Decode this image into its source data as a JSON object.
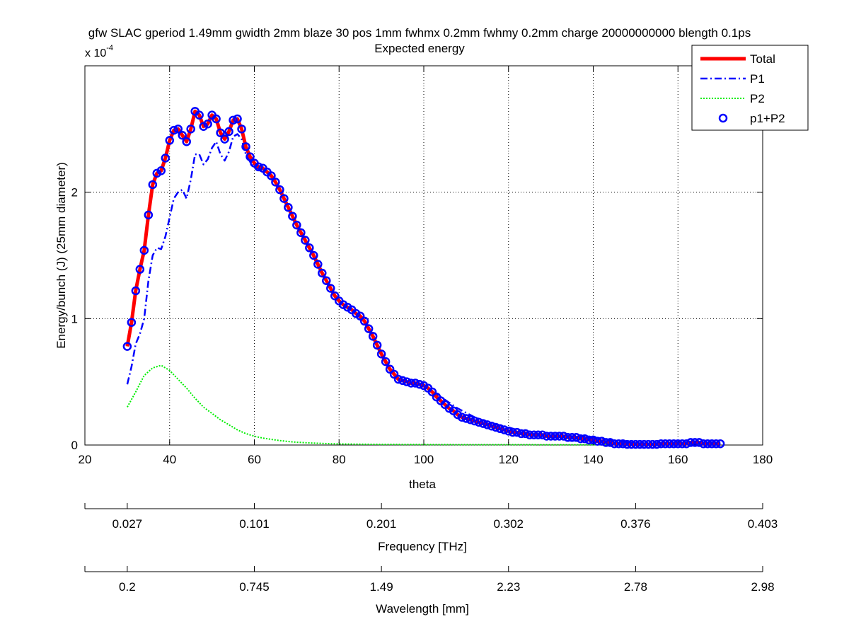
{
  "figure": {
    "title_line1": "gfw SLAC gperiod 1.49mm gwidth 2mm blaze 30 pos 1mm fwhmx 0.2mm fwhmy 0.2mm charge 20000000000 blength 0.1ps",
    "title_line2": "Expected energy",
    "exponent_label": "x 10",
    "exponent_power": "-4"
  },
  "chart_data": {
    "type": "line",
    "title": "Expected energy",
    "xlabel": "theta",
    "ylabel": "Energy/bunch (J) (25mm diameter)",
    "xlim": [
      20,
      180
    ],
    "ylim": [
      0,
      3.0
    ],
    "y_scale_factor": "x 10^-4",
    "grid": true,
    "legend_position": "top-right",
    "x_ticks": [
      20,
      40,
      60,
      80,
      100,
      120,
      140,
      160,
      180
    ],
    "y_ticks": [
      0,
      1,
      2
    ],
    "colors": {
      "total": "#ff0000",
      "p1": "#0000ff",
      "p2": "#00ee00",
      "sum": "#0000ff"
    },
    "series": [
      {
        "name": "Total",
        "style": "solid-thick",
        "x": [
          30,
          31,
          32,
          33,
          34,
          35,
          36,
          37,
          38,
          39,
          40,
          41,
          42,
          43,
          44,
          45,
          46,
          47,
          48,
          49,
          50,
          51,
          52,
          53,
          54,
          55,
          56,
          57,
          58,
          59,
          60,
          61,
          62,
          63,
          64,
          65,
          66,
          67,
          68,
          69,
          70,
          71,
          72,
          73,
          74,
          75,
          76,
          77,
          78,
          79,
          80,
          81,
          82,
          83,
          84,
          85,
          86,
          87,
          88,
          89,
          90,
          91,
          92,
          93,
          94,
          95,
          96,
          97,
          98,
          99,
          100,
          101,
          102,
          103,
          104,
          105,
          106,
          107,
          108,
          109,
          110,
          111,
          112,
          113,
          114,
          115,
          116,
          117,
          118,
          119,
          120,
          121,
          122,
          123,
          124,
          125,
          126,
          127,
          128,
          129,
          130,
          131,
          132,
          133,
          134,
          135,
          136,
          137,
          138,
          139,
          140,
          141,
          142,
          143,
          144,
          145,
          146,
          147,
          148,
          149,
          150,
          151,
          152,
          153,
          154,
          155,
          156,
          157,
          158,
          159,
          160,
          161,
          162,
          163,
          164,
          165,
          166,
          167,
          168,
          169,
          170
        ],
        "values": [
          0.78,
          0.97,
          1.22,
          1.39,
          1.54,
          1.82,
          2.06,
          2.15,
          2.17,
          2.27,
          2.41,
          2.49,
          2.5,
          2.45,
          2.4,
          2.5,
          2.64,
          2.61,
          2.52,
          2.54,
          2.61,
          2.58,
          2.47,
          2.42,
          2.48,
          2.57,
          2.58,
          2.5,
          2.36,
          2.28,
          2.23,
          2.2,
          2.19,
          2.16,
          2.13,
          2.08,
          2.02,
          1.95,
          1.88,
          1.81,
          1.74,
          1.68,
          1.62,
          1.56,
          1.5,
          1.43,
          1.36,
          1.3,
          1.24,
          1.18,
          1.14,
          1.11,
          1.09,
          1.07,
          1.04,
          1.02,
          0.98,
          0.92,
          0.86,
          0.79,
          0.72,
          0.66,
          0.6,
          0.56,
          0.52,
          0.51,
          0.5,
          0.49,
          0.49,
          0.48,
          0.47,
          0.45,
          0.42,
          0.38,
          0.35,
          0.32,
          0.29,
          0.27,
          0.24,
          0.22,
          0.21,
          0.2,
          0.19,
          0.18,
          0.17,
          0.16,
          0.15,
          0.14,
          0.13,
          0.12,
          0.11,
          0.1,
          0.1,
          0.09,
          0.09,
          0.08,
          0.08,
          0.08,
          0.08,
          0.07,
          0.07,
          0.07,
          0.07,
          0.07,
          0.06,
          0.06,
          0.06,
          0.05,
          0.05,
          0.04,
          0.04,
          0.03,
          0.03,
          0.02,
          0.02,
          0.01,
          0.01,
          0.01,
          0.005,
          0.005,
          0.005,
          0.005,
          0.005,
          0.005,
          0.005,
          0.005,
          0.01,
          0.01,
          0.01,
          0.01,
          0.01,
          0.01,
          0.01,
          0.02,
          0.02,
          0.02,
          0.01,
          0.01,
          0.01,
          0.01,
          0.01
        ]
      },
      {
        "name": "P1",
        "style": "dashdot",
        "x": [
          30,
          31,
          32,
          33,
          34,
          35,
          36,
          37,
          38,
          39,
          40,
          41,
          42,
          43,
          44,
          45,
          46,
          47,
          48,
          49,
          50,
          51,
          52,
          53,
          54,
          55,
          56,
          57,
          58,
          59,
          60,
          62,
          64,
          66,
          68,
          70,
          72,
          74,
          76,
          78,
          80,
          82,
          84,
          86,
          88,
          90,
          92,
          94,
          96,
          98,
          100,
          104,
          108,
          112,
          116,
          120,
          124,
          128,
          132,
          136,
          140,
          144,
          148,
          152,
          156,
          160,
          164,
          168,
          170
        ],
        "values": [
          0.48,
          0.62,
          0.8,
          0.88,
          1.0,
          1.3,
          1.5,
          1.56,
          1.55,
          1.65,
          1.8,
          1.95,
          2.0,
          2.02,
          1.95,
          2.1,
          2.3,
          2.3,
          2.22,
          2.26,
          2.35,
          2.4,
          2.3,
          2.25,
          2.32,
          2.44,
          2.46,
          2.42,
          2.3,
          2.24,
          2.2,
          2.17,
          2.12,
          2.01,
          1.87,
          1.73,
          1.61,
          1.49,
          1.35,
          1.23,
          1.14,
          1.09,
          1.04,
          0.97,
          0.85,
          0.71,
          0.59,
          0.52,
          0.5,
          0.49,
          0.47,
          0.38,
          0.29,
          0.22,
          0.17,
          0.14,
          0.1,
          0.08,
          0.07,
          0.07,
          0.06,
          0.04,
          0.02,
          0.01,
          0.005,
          0.005,
          0.01,
          0.02,
          0.01
        ]
      },
      {
        "name": "P2",
        "style": "dotted",
        "x": [
          30,
          32,
          34,
          36,
          38,
          40,
          42,
          44,
          46,
          48,
          50,
          52,
          54,
          56,
          58,
          60,
          62,
          64,
          66,
          68,
          70,
          74,
          78,
          82,
          86,
          90,
          100,
          110,
          120,
          130,
          140,
          150,
          160,
          170
        ],
        "values": [
          0.3,
          0.42,
          0.55,
          0.61,
          0.63,
          0.59,
          0.52,
          0.45,
          0.37,
          0.3,
          0.25,
          0.2,
          0.16,
          0.12,
          0.09,
          0.07,
          0.055,
          0.045,
          0.035,
          0.028,
          0.022,
          0.015,
          0.01,
          0.008,
          0.006,
          0.005,
          0.004,
          0.003,
          0.003,
          0.002,
          0.002,
          0.002,
          0.001,
          0.001
        ]
      },
      {
        "name": "p1+P2",
        "style": "circles",
        "x": [
          30,
          31,
          32,
          33,
          34,
          35,
          36,
          37,
          38,
          39,
          40,
          41,
          42,
          43,
          44,
          45,
          46,
          47,
          48,
          49,
          50,
          51,
          52,
          53,
          54,
          55,
          56,
          57,
          58,
          59,
          60,
          61,
          62,
          63,
          64,
          65,
          66,
          67,
          68,
          69,
          70,
          71,
          72,
          73,
          74,
          75,
          76,
          77,
          78,
          79,
          80,
          81,
          82,
          83,
          84,
          85,
          86,
          87,
          88,
          89,
          90,
          91,
          92,
          93,
          94,
          95,
          96,
          97,
          98,
          99,
          100,
          101,
          102,
          103,
          104,
          105,
          106,
          107,
          108,
          109,
          110,
          111,
          112,
          113,
          114,
          115,
          116,
          117,
          118,
          119,
          120,
          121,
          122,
          123,
          124,
          125,
          126,
          127,
          128,
          129,
          130,
          131,
          132,
          133,
          134,
          135,
          136,
          137,
          138,
          139,
          140,
          141,
          142,
          143,
          144,
          145,
          146,
          147,
          148,
          149,
          150,
          151,
          152,
          153,
          154,
          155,
          156,
          157,
          158,
          159,
          160,
          161,
          162,
          163,
          164,
          165,
          166,
          167,
          168,
          169,
          170
        ],
        "values": [
          0.78,
          0.97,
          1.22,
          1.39,
          1.54,
          1.82,
          2.06,
          2.15,
          2.17,
          2.27,
          2.41,
          2.49,
          2.5,
          2.45,
          2.4,
          2.5,
          2.64,
          2.61,
          2.52,
          2.54,
          2.61,
          2.58,
          2.47,
          2.42,
          2.48,
          2.57,
          2.58,
          2.5,
          2.36,
          2.28,
          2.23,
          2.2,
          2.19,
          2.16,
          2.13,
          2.08,
          2.02,
          1.95,
          1.88,
          1.81,
          1.74,
          1.68,
          1.62,
          1.56,
          1.5,
          1.43,
          1.36,
          1.3,
          1.24,
          1.18,
          1.14,
          1.11,
          1.09,
          1.07,
          1.04,
          1.02,
          0.98,
          0.92,
          0.86,
          0.79,
          0.72,
          0.66,
          0.6,
          0.56,
          0.52,
          0.51,
          0.5,
          0.49,
          0.49,
          0.48,
          0.47,
          0.45,
          0.42,
          0.38,
          0.35,
          0.32,
          0.29,
          0.27,
          0.24,
          0.22,
          0.21,
          0.2,
          0.19,
          0.18,
          0.17,
          0.16,
          0.15,
          0.14,
          0.13,
          0.12,
          0.11,
          0.1,
          0.1,
          0.09,
          0.09,
          0.08,
          0.08,
          0.08,
          0.08,
          0.07,
          0.07,
          0.07,
          0.07,
          0.07,
          0.06,
          0.06,
          0.06,
          0.05,
          0.05,
          0.04,
          0.04,
          0.03,
          0.03,
          0.02,
          0.02,
          0.01,
          0.01,
          0.01,
          0.005,
          0.005,
          0.005,
          0.005,
          0.005,
          0.005,
          0.005,
          0.005,
          0.01,
          0.01,
          0.01,
          0.01,
          0.01,
          0.01,
          0.01,
          0.02,
          0.02,
          0.02,
          0.01,
          0.01,
          0.01,
          0.01,
          0.01
        ]
      }
    ],
    "secondary_axes": [
      {
        "label": "Frequency [THz]",
        "tick_labels": [
          "0.027",
          "0.101",
          "0.201",
          "0.302",
          "0.376",
          "0.403"
        ],
        "tick_theta": [
          30,
          60,
          90,
          120,
          150,
          180
        ]
      },
      {
        "label": "Wavelength [mm]",
        "tick_labels": [
          "0.2",
          "0.745",
          "1.49",
          "2.23",
          "2.78",
          "2.98"
        ],
        "tick_theta": [
          30,
          60,
          90,
          120,
          150,
          180
        ]
      }
    ]
  }
}
